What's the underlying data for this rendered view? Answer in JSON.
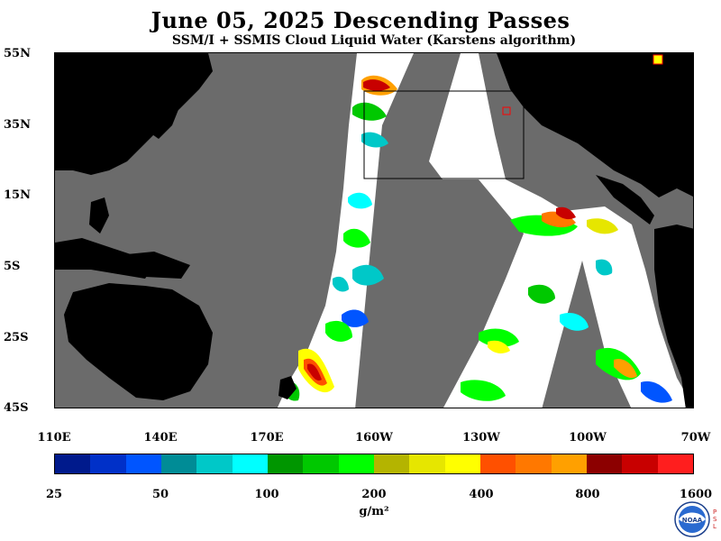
{
  "title": "June 05, 2025  Descending Passes",
  "subtitle": "SSM/I + SSMIS Cloud Liquid Water (Karstens algorithm)",
  "map": {
    "lat_labels": [
      "55N",
      "35N",
      "15N",
      "5S",
      "25S",
      "45S"
    ],
    "lon_labels": [
      "110E",
      "140E",
      "170E",
      "160W",
      "130W",
      "100W",
      "70W"
    ],
    "colors": {
      "land": "#000000",
      "no_data": "#6b6b6b",
      "ocean_clear": "#ffffff",
      "box_outline": "#000000"
    }
  },
  "colorbar": {
    "colors": [
      "#001a8c",
      "#0030c8",
      "#0055ff",
      "#008c96",
      "#00c8c8",
      "#00ffff",
      "#009600",
      "#00c800",
      "#00ff00",
      "#b4b400",
      "#e6e600",
      "#ffff00",
      "#ff5000",
      "#ff7800",
      "#ffa000",
      "#8c0000",
      "#c80000",
      "#ff1e1e"
    ],
    "tick_labels": [
      "25",
      "50",
      "100",
      "200",
      "400",
      "800",
      "1600"
    ],
    "units": "g/m²"
  },
  "logo": {
    "text": "NOAA",
    "side_text": "PSL"
  }
}
